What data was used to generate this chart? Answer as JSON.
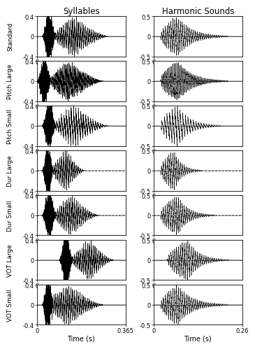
{
  "col_titles": [
    "Syllables",
    "Harmonic Sounds"
  ],
  "row_labels": [
    "Standard",
    "Pitch Large",
    "Pitch Small",
    "Dur Large",
    "Dur Small",
    "VOT Large",
    "VOT Small"
  ],
  "left_ylim": [
    -0.4,
    0.4
  ],
  "right_ylim": [
    -0.5,
    0.5
  ],
  "left_xlim": [
    0,
    0.365
  ],
  "right_xlim": [
    0,
    0.26
  ],
  "left_yticks": [
    -0.4,
    0,
    0.4
  ],
  "right_yticks": [
    -0.5,
    0,
    0.5
  ],
  "left_xticks": [
    0,
    0.365
  ],
  "right_xticks": [
    0,
    0.26
  ],
  "xlabel": "Time (s)",
  "bg_color": "#ffffff",
  "waveform_color": "black",
  "figsize": [
    3.67,
    5.11
  ],
  "dpi": 100,
  "title_fontsize": 8.5,
  "label_fontsize": 7,
  "tick_fontsize": 6,
  "row_label_fontsize": 6.5,
  "syllables_params": [
    {
      "noise_on": 0.02,
      "noise_off": 0.08,
      "noise_amp": 0.22,
      "voiced_on": 0.07,
      "voiced_peak": 0.15,
      "voiced_off": 0.3,
      "voiced_amp": 0.36,
      "fund_freq": 130
    },
    {
      "noise_on": 0.0,
      "noise_off": 0.06,
      "noise_amp": 0.22,
      "voiced_on": 0.05,
      "voiced_peak": 0.13,
      "voiced_off": 0.28,
      "voiced_amp": 0.36,
      "fund_freq": 200
    },
    {
      "noise_on": 0.02,
      "noise_off": 0.08,
      "noise_amp": 0.22,
      "voiced_on": 0.07,
      "voiced_peak": 0.15,
      "voiced_off": 0.3,
      "voiced_amp": 0.36,
      "fund_freq": 100
    },
    {
      "noise_on": 0.02,
      "noise_off": 0.07,
      "noise_amp": 0.22,
      "voiced_on": 0.06,
      "voiced_peak": 0.12,
      "voiced_off": 0.2,
      "voiced_amp": 0.36,
      "fund_freq": 130
    },
    {
      "noise_on": 0.02,
      "noise_off": 0.08,
      "noise_amp": 0.22,
      "voiced_on": 0.07,
      "voiced_peak": 0.14,
      "voiced_off": 0.26,
      "voiced_amp": 0.36,
      "fund_freq": 130
    },
    {
      "noise_on": 0.09,
      "noise_off": 0.15,
      "noise_amp": 0.22,
      "voiced_on": 0.14,
      "voiced_peak": 0.22,
      "voiced_off": 0.32,
      "voiced_amp": 0.36,
      "fund_freq": 130
    },
    {
      "noise_on": 0.02,
      "noise_off": 0.07,
      "noise_amp": 0.22,
      "voiced_on": 0.04,
      "voiced_peak": 0.13,
      "voiced_off": 0.28,
      "voiced_amp": 0.36,
      "fund_freq": 130
    }
  ],
  "harmonic_params": [
    {
      "onset": 0.02,
      "peak_t": 0.07,
      "off": 0.22,
      "amp": 0.48,
      "fund_freq": 180
    },
    {
      "onset": 0.02,
      "peak_t": 0.07,
      "off": 0.22,
      "amp": 0.48,
      "fund_freq": 250
    },
    {
      "onset": 0.02,
      "peak_t": 0.07,
      "off": 0.2,
      "amp": 0.48,
      "fund_freq": 130
    },
    {
      "onset": 0.02,
      "peak_t": 0.06,
      "off": 0.14,
      "amp": 0.48,
      "fund_freq": 180
    },
    {
      "onset": 0.02,
      "peak_t": 0.07,
      "off": 0.18,
      "amp": 0.48,
      "fund_freq": 180
    },
    {
      "onset": 0.04,
      "peak_t": 0.1,
      "off": 0.22,
      "amp": 0.48,
      "fund_freq": 180
    },
    {
      "onset": 0.02,
      "peak_t": 0.07,
      "off": 0.22,
      "amp": 0.48,
      "fund_freq": 180
    }
  ],
  "dashed_rows": [
    3,
    4
  ]
}
